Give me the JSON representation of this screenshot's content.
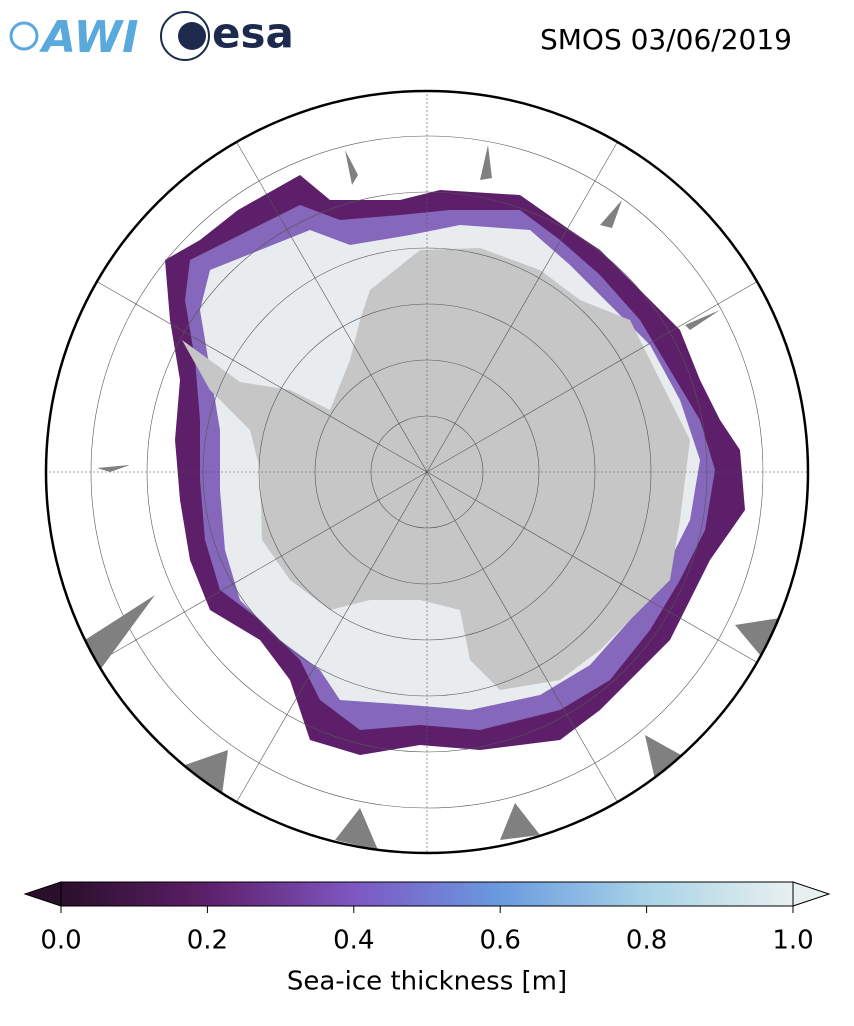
{
  "header": {
    "logos": [
      "AWI",
      "esa"
    ],
    "title": "SMOS 03/06/2019"
  },
  "colorbar": {
    "label": "Sea-ice thickness [m]",
    "lim": [
      0,
      1
    ],
    "ticks": [
      {
        "value": 0,
        "label": "0.0"
      },
      {
        "value": 0.2,
        "label": "0.2"
      },
      {
        "value": 0.4,
        "label": "0.4"
      },
      {
        "value": 0.6,
        "label": "0.6"
      },
      {
        "value": 0.8,
        "label": "0.8"
      },
      {
        "value": 1,
        "label": "1.0"
      }
    ],
    "colors": [
      "#2a0f2a",
      "#5e1f6a",
      "#7e57c2",
      "#6a9ae0",
      "#a8d3e6",
      "#e8f0ef"
    ]
  }
}
